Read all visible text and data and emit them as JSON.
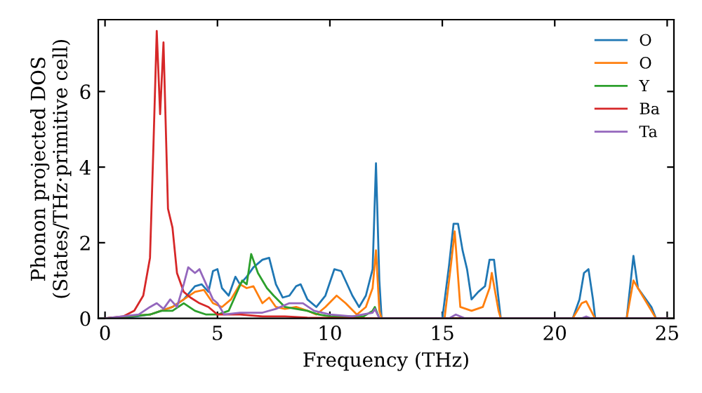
{
  "chart_data": {
    "type": "line",
    "xlabel": "Frequency (THz)",
    "ylabel": "Phonon projected DOS\n(States/THz·primitive cell)",
    "xlim": [
      -0.3,
      25.3
    ],
    "ylim": [
      0,
      7.9
    ],
    "xticks": [
      0,
      5,
      10,
      15,
      20,
      25
    ],
    "yticks": [
      0,
      2,
      4,
      6
    ],
    "legend": "top right",
    "grid": false,
    "marker": "none",
    "line_style": "solid",
    "series": [
      {
        "name": "O",
        "color": "#1f77b4",
        "x": [
          0,
          1,
          2,
          2.5,
          3,
          3.5,
          4,
          4.3,
          4.6,
          4.8,
          5,
          5.2,
          5.5,
          5.8,
          6.0,
          6.3,
          6.6,
          7,
          7.3,
          7.6,
          7.9,
          8.2,
          8.5,
          8.7,
          9,
          9.4,
          9.8,
          10.2,
          10.5,
          11,
          11.3,
          11.6,
          11.9,
          12.05,
          12.2,
          12.3,
          15,
          15.3,
          15.5,
          15.7,
          15.9,
          16.1,
          16.3,
          16.6,
          16.9,
          17.1,
          17.3,
          17.6,
          20.8,
          21.1,
          21.3,
          21.5,
          21.7,
          21.8,
          23.2,
          23.5,
          23.7,
          24.3,
          24.5,
          25
        ],
        "values": [
          0,
          0.02,
          0.1,
          0.2,
          0.3,
          0.5,
          0.85,
          0.9,
          0.7,
          1.25,
          1.3,
          0.8,
          0.6,
          1.1,
          0.9,
          1.1,
          1.35,
          1.55,
          1.6,
          0.9,
          0.55,
          0.6,
          0.85,
          0.9,
          0.5,
          0.3,
          0.6,
          1.3,
          1.25,
          0.6,
          0.3,
          0.6,
          1.3,
          4.1,
          1.0,
          0,
          0,
          1.4,
          2.5,
          2.5,
          1.8,
          1.3,
          0.5,
          0.7,
          0.85,
          1.55,
          1.55,
          0,
          0,
          0.5,
          1.2,
          1.3,
          0.5,
          0,
          0,
          1.65,
          0.8,
          0.3,
          0,
          0
        ]
      },
      {
        "name": "O",
        "color": "#ff7f0e",
        "x": [
          0,
          2,
          3,
          3.5,
          4,
          4.4,
          4.8,
          5.2,
          5.6,
          6,
          6.3,
          6.6,
          7.0,
          7.3,
          7.6,
          8,
          8.5,
          9,
          9.4,
          9.8,
          10.3,
          10.7,
          11.2,
          11.6,
          11.9,
          12.05,
          12.2,
          12.3,
          15.1,
          15.4,
          15.55,
          15.8,
          16.3,
          16.8,
          17.1,
          17.2,
          17.5,
          17.6,
          20.8,
          21.2,
          21.4,
          21.7,
          21.8,
          23.2,
          23.5,
          24.3,
          24.5,
          25
        ],
        "values": [
          0,
          0.1,
          0.3,
          0.5,
          0.7,
          0.75,
          0.4,
          0.3,
          0.5,
          0.9,
          0.8,
          0.85,
          0.4,
          0.55,
          0.3,
          0.25,
          0.3,
          0.2,
          0.1,
          0.3,
          0.6,
          0.4,
          0.1,
          0.3,
          0.8,
          1.8,
          0.2,
          0,
          0,
          1.5,
          2.3,
          0.3,
          0.2,
          0.3,
          0.8,
          1.2,
          0.2,
          0,
          0,
          0.4,
          0.45,
          0.1,
          0,
          0,
          1.0,
          0.2,
          0,
          0
        ]
      },
      {
        "name": "Y",
        "color": "#2ca02c",
        "x": [
          0,
          2,
          2.5,
          3,
          3.5,
          4,
          4.5,
          5,
          5.5,
          5.8,
          6.1,
          6.3,
          6.5,
          6.8,
          7.2,
          7.5,
          8,
          8.5,
          9,
          9.5,
          10,
          11.5,
          11.9,
          12.0,
          12.2,
          25
        ],
        "values": [
          0,
          0.1,
          0.2,
          0.2,
          0.4,
          0.2,
          0.1,
          0.1,
          0.2,
          0.6,
          1.0,
          0.9,
          1.7,
          1.2,
          0.8,
          0.6,
          0.3,
          0.25,
          0.2,
          0.1,
          0.05,
          0.05,
          0.2,
          0.3,
          0,
          0
        ]
      },
      {
        "name": "Ba",
        "color": "#d62728",
        "x": [
          0,
          0.8,
          1.3,
          1.7,
          2.0,
          2.15,
          2.3,
          2.45,
          2.6,
          2.8,
          3.0,
          3.2,
          3.5,
          3.8,
          4.2,
          4.6,
          5,
          6,
          7,
          8,
          9,
          12,
          25
        ],
        "values": [
          0,
          0.05,
          0.2,
          0.6,
          1.6,
          4.5,
          7.6,
          5.4,
          7.3,
          2.9,
          2.4,
          1.2,
          0.7,
          0.55,
          0.4,
          0.3,
          0.1,
          0.1,
          0.05,
          0.05,
          0.02,
          0,
          0
        ]
      },
      {
        "name": "Ta",
        "color": "#9467bd",
        "x": [
          0,
          1.5,
          2,
          2.3,
          2.6,
          2.9,
          3.2,
          3.5,
          3.7,
          4.0,
          4.2,
          4.5,
          4.8,
          5.0,
          5.3,
          6,
          7,
          7.6,
          8.2,
          8.8,
          9.3,
          10,
          11,
          11.9,
          12,
          12.2,
          15.3,
          15.6,
          16,
          21.2,
          21.4,
          21.6,
          25
        ],
        "values": [
          0,
          0.1,
          0.3,
          0.4,
          0.25,
          0.5,
          0.3,
          0.9,
          1.35,
          1.2,
          1.3,
          0.9,
          0.5,
          0.4,
          0.1,
          0.15,
          0.15,
          0.25,
          0.4,
          0.4,
          0.2,
          0.1,
          0.05,
          0.15,
          0.25,
          0,
          0,
          0.1,
          0,
          0,
          0.05,
          0,
          0
        ]
      }
    ]
  }
}
